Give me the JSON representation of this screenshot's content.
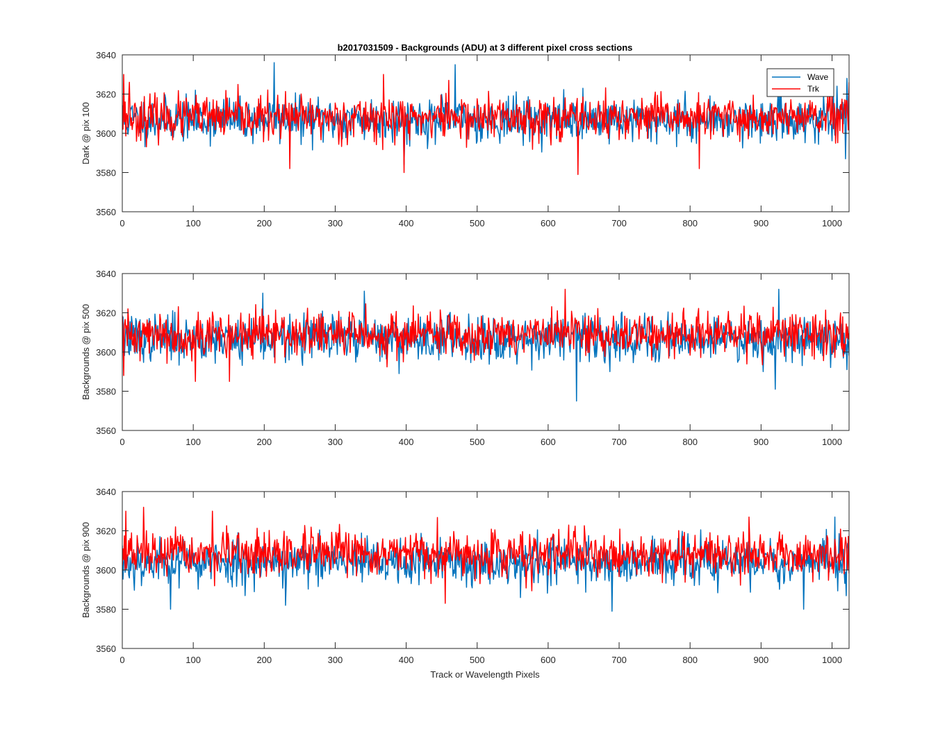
{
  "chart_data": [
    {
      "type": "line",
      "title": "b2017031509 - Backgrounds (ADU) at 3 different pixel cross sections",
      "xlabel": "",
      "ylabel": "Dark @ pix 100",
      "xlim": [
        0,
        1024
      ],
      "ylim": [
        3560,
        3640
      ],
      "xticks": [
        0,
        100,
        200,
        300,
        400,
        500,
        600,
        700,
        800,
        900,
        1000
      ],
      "yticks": [
        3560,
        3580,
        3600,
        3620,
        3640
      ],
      "legend": {
        "entries": [
          "Wave",
          "Trk"
        ],
        "location": "top-right"
      },
      "series": [
        {
          "name": "Wave",
          "color": "#0072BD",
          "x_range": [
            0,
            1024
          ],
          "mean": 3607,
          "std": 5.5,
          "seed": 11,
          "peaks": [
            [
              214,
              3636
            ],
            [
              469,
              3635
            ],
            [
              1021,
              3628
            ],
            [
              397,
              3584
            ],
            [
              1019,
              3587
            ]
          ]
        },
        {
          "name": "Trk",
          "color": "#FF0000",
          "x_range": [
            0,
            1024
          ],
          "mean": 3608,
          "std": 5.5,
          "seed": 23,
          "peaks": [
            [
              2,
              3630
            ],
            [
              10,
              3626
            ],
            [
              368,
              3630
            ],
            [
              460,
              3627
            ],
            [
              642,
              3579
            ],
            [
              397,
              3580
            ],
            [
              236,
              3582
            ],
            [
              813,
              3582
            ],
            [
              1024,
              3626
            ]
          ]
        }
      ]
    },
    {
      "type": "line",
      "title": "",
      "xlabel": "",
      "ylabel": "Backgrounds @ pix 500",
      "xlim": [
        0,
        1024
      ],
      "ylim": [
        3560,
        3640
      ],
      "xticks": [
        0,
        100,
        200,
        300,
        400,
        500,
        600,
        700,
        800,
        900,
        1000
      ],
      "yticks": [
        3560,
        3580,
        3600,
        3620,
        3640
      ],
      "series": [
        {
          "name": "Wave",
          "color": "#0072BD",
          "x_range": [
            0,
            1024
          ],
          "mean": 3607,
          "std": 5.8,
          "seed": 37,
          "peaks": [
            [
              640,
              3575
            ],
            [
              925,
              3632
            ],
            [
              341,
              3631
            ],
            [
              198,
              3630
            ],
            [
              920,
              3581
            ],
            [
              1021,
              3591
            ]
          ]
        },
        {
          "name": "Trk",
          "color": "#FF0000",
          "x_range": [
            0,
            1024
          ],
          "mean": 3609,
          "std": 5.8,
          "seed": 41,
          "peaks": [
            [
              624,
              3632
            ],
            [
              2,
              3588
            ],
            [
              103,
              3585
            ],
            [
              151,
              3585
            ],
            [
              8,
              3622
            ]
          ]
        }
      ]
    },
    {
      "type": "line",
      "title": "",
      "xlabel": "Track or Wavelength Pixels",
      "ylabel": "Backgrounds @ pix 900",
      "xlim": [
        0,
        1024
      ],
      "ylim": [
        3560,
        3640
      ],
      "xticks": [
        0,
        100,
        200,
        300,
        400,
        500,
        600,
        700,
        800,
        900,
        1000
      ],
      "yticks": [
        3560,
        3580,
        3600,
        3620,
        3640
      ],
      "series": [
        {
          "name": "Wave",
          "color": "#0072BD",
          "x_range": [
            0,
            1024
          ],
          "mean": 3604,
          "std": 6.0,
          "seed": 53,
          "peaks": [
            [
              690,
              3579
            ],
            [
              960,
              3580
            ],
            [
              68,
              3580
            ],
            [
              230,
              3582
            ],
            [
              1004,
              3627
            ]
          ]
        },
        {
          "name": "Trk",
          "color": "#FF0000",
          "x_range": [
            0,
            1024
          ],
          "mean": 3608,
          "std": 5.5,
          "seed": 67,
          "peaks": [
            [
              30,
              3632
            ],
            [
              5,
              3630
            ],
            [
              127,
              3630
            ],
            [
              455,
              3583
            ],
            [
              883,
              3627
            ],
            [
              4,
              3600
            ]
          ]
        }
      ]
    }
  ]
}
